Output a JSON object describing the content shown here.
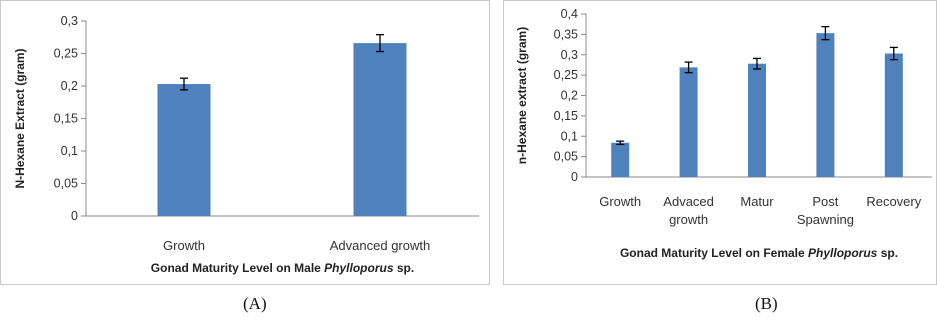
{
  "chart_data": [
    {
      "type": "bar",
      "categories": [
        "Growth",
        "Advanced growth"
      ],
      "values": [
        0.203,
        0.266
      ],
      "errors": [
        0.009,
        0.013
      ],
      "ylabel": "N-Hexane Extract (gram)",
      "xlabel_prefix": "Gonad Maturity Level on Male ",
      "xlabel_species": "Phylloporus",
      "xlabel_suffix": " sp.",
      "ylim": [
        0,
        0.3
      ],
      "ytick_labels": [
        "0",
        "0,05",
        "0,1",
        "0,15",
        "0,2",
        "0,25",
        "0,3"
      ],
      "bar_color": "#4f81bd",
      "grid": false,
      "panel_label": "(A)"
    },
    {
      "type": "bar",
      "categories": [
        "Growth",
        "Advaced growth",
        "Matur",
        "Post Spawning",
        "Recovery"
      ],
      "category_lines": [
        [
          "Growth"
        ],
        [
          "Advaced",
          "growth"
        ],
        [
          "Matur"
        ],
        [
          "Post",
          "Spawning"
        ],
        [
          "Recovery"
        ]
      ],
      "values": [
        0.084,
        0.269,
        0.278,
        0.353,
        0.303
      ],
      "errors": [
        0.004,
        0.013,
        0.013,
        0.016,
        0.015
      ],
      "ylabel": "n-Hexane extract (gram)",
      "xlabel_prefix": "Gonad Maturity Level on Female ",
      "xlabel_species": "Phylloporus",
      "xlabel_suffix": " sp.",
      "ylim": [
        0,
        0.4
      ],
      "ytick_labels": [
        "0",
        "0,05",
        "0,1",
        "0,15",
        "0,2",
        "0,25",
        "0,3",
        "0,35",
        "0,4"
      ],
      "bar_color": "#4f81bd",
      "grid": false,
      "panel_label": "(B)"
    }
  ]
}
